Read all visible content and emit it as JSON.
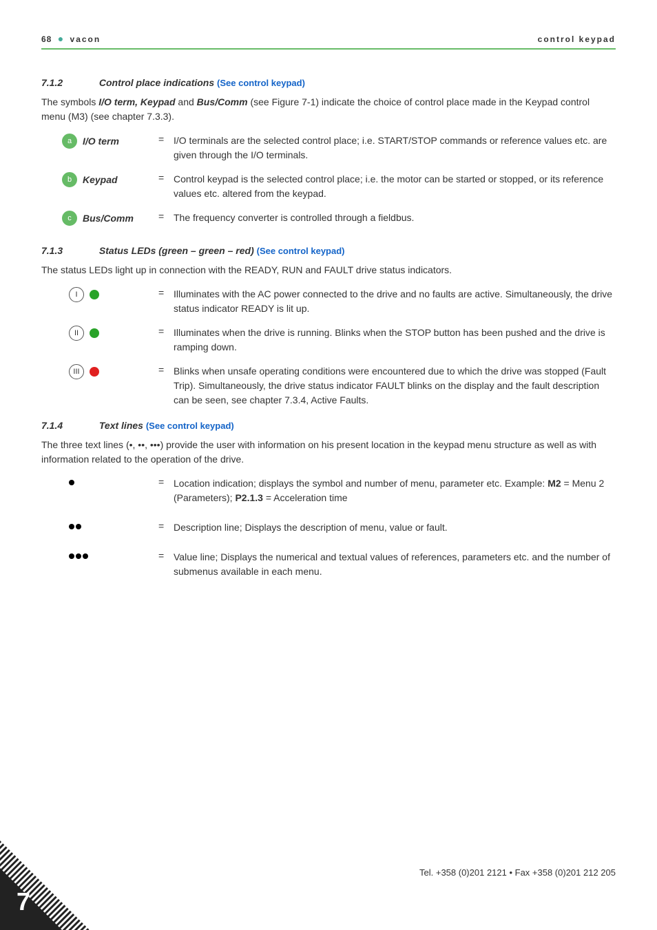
{
  "header": {
    "pagenum": "68",
    "brand": "vacon",
    "section_title": "control keypad"
  },
  "rule_color": "#66bb66",
  "s712": {
    "num": "7.1.2",
    "title": "Control place indications",
    "link": "(See control keypad)",
    "intro_a": "The symbols ",
    "intro_b": "I/O term, Keypad",
    "intro_c": " and ",
    "intro_d": "Bus/Comm",
    "intro_e": " (see Figure 7-1) indicate the choice of control place made in the Keypad control menu (M3) (see chapter 7.3.3).",
    "rows": [
      {
        "marker": "a",
        "term": "I/O term",
        "text": "I/O terminals are the selected control place; i.e. START/STOP commands or reference values etc. are given through the I/O terminals."
      },
      {
        "marker": "b",
        "term": "Keypad",
        "text": "Control keypad is the selected control place; i.e. the motor can be started or stopped, or its reference values etc. altered from the keypad."
      },
      {
        "marker": "c",
        "term": "Bus/Comm",
        "text": "The frequency converter is controlled through a fieldbus."
      }
    ]
  },
  "s713": {
    "num": "7.1.3",
    "title": "Status LEDs (green – green – red)",
    "link": "(See control keypad)",
    "intro": "The status LEDs light up in connection with the READY, RUN and FAULT drive status indicators.",
    "rows": [
      {
        "roman": "I",
        "color": "green",
        "text": "Illuminates with the AC power connected to the drive and no faults are active. Simultaneously, the drive status indicator READY is lit up."
      },
      {
        "roman": "II",
        "color": "green",
        "text": "Illuminates when the drive is running. Blinks when the STOP button has been pushed and the drive is ramping down."
      },
      {
        "roman": "III",
        "color": "red",
        "text": "Blinks when unsafe operating conditions were encountered due to which the drive was stopped (Fault Trip). Simultaneously, the drive status indicator FAULT blinks on the display and the fault description can be seen, see chapter 7.3.4, Active Faults."
      }
    ]
  },
  "s714": {
    "num": "7.1.4",
    "title": "Text lines",
    "link": "(See control keypad)",
    "intro": "The three text lines (•, ••, •••) provide the user with information on his present location in the keypad menu structure as well as with information related to the operation of the drive.",
    "rows": [
      {
        "dots": 1,
        "text_a": "Location indication; displays the symbol and number of menu, parameter etc. Example: ",
        "bold1": "M2",
        "text_b": " = Menu 2 (Parameters); ",
        "bold2": "P2.1.3",
        "text_c": " = Acceleration time"
      },
      {
        "dots": 2,
        "text_a": "Description line; Displays the description of menu, value or fault.",
        "bold1": "",
        "text_b": "",
        "bold2": "",
        "text_c": ""
      },
      {
        "dots": 3,
        "text_a": "Value line; Displays the numerical and textual values of references, parameters etc. and the number of submenus available in each menu.",
        "bold1": "",
        "text_b": "",
        "bold2": "",
        "text_c": ""
      }
    ]
  },
  "footer": {
    "text": "Tel. +358 (0)201 2121 • Fax +358 (0)201 212 205",
    "chapter": "7",
    "corner_fill": "#222",
    "corner_stroke": "#fff"
  }
}
